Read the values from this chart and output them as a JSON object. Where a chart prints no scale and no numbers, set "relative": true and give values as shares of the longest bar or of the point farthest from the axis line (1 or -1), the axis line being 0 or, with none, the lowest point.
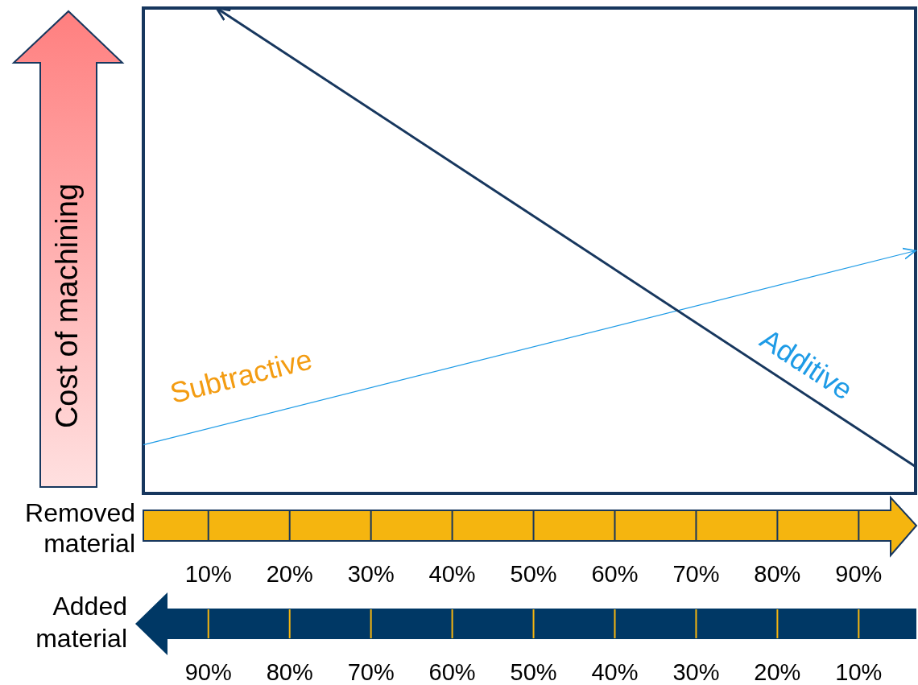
{
  "chart_data": {
    "type": "line",
    "relative": true,
    "xlabel": "Removed material",
    "x2label": "Added material",
    "ylabel": "Cost of machining",
    "xlim": [
      2,
      97
    ],
    "xticks": [
      {
        "value": 10,
        "label": "10%"
      },
      {
        "value": 20,
        "label": "20%"
      },
      {
        "value": 30,
        "label": "30%"
      },
      {
        "value": 40,
        "label": "40%"
      },
      {
        "value": 50,
        "label": "50%"
      },
      {
        "value": 60,
        "label": "60%"
      },
      {
        "value": 70,
        "label": "70%"
      },
      {
        "value": 80,
        "label": "80%"
      },
      {
        "value": 90,
        "label": "90%"
      }
    ],
    "x2lim": [
      98,
      3
    ],
    "x2ticks": [
      {
        "value": 90,
        "label": "90%"
      },
      {
        "value": 80,
        "label": "80%"
      },
      {
        "value": 70,
        "label": "70%"
      },
      {
        "value": 60,
        "label": "60%"
      },
      {
        "value": 50,
        "label": "50%"
      },
      {
        "value": 40,
        "label": "40%"
      },
      {
        "value": 30,
        "label": "30%"
      },
      {
        "value": 20,
        "label": "20%"
      },
      {
        "value": 10,
        "label": "10%"
      }
    ],
    "series": [
      {
        "color": "#1e9be6",
        "x": [
          2,
          97
        ],
        "values": [
          0.1,
          0.5
        ]
      },
      {
        "color": "#17375e",
        "x": [
          11,
          97
        ],
        "values": [
          1,
          0.055
        ]
      }
    ],
    "annotations": [
      "Subtractive",
      "Additive"
    ]
  }
}
